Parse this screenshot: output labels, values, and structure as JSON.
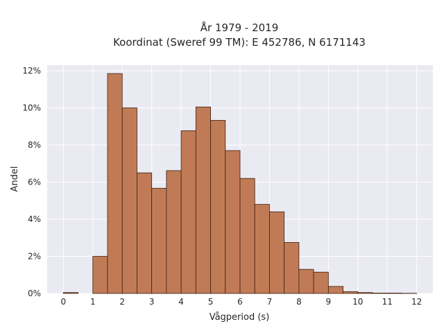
{
  "chart_data": {
    "type": "bar",
    "title_lines": [
      "År 1979 - 2019",
      "Koordinat (Sweref 99 TM): E 452786, N 6171143"
    ],
    "xlabel": "Vågperiod (s)",
    "ylabel": "Andel",
    "bin_width": 0.5,
    "xlim": [
      -0.55,
      12.55
    ],
    "ylim": [
      0,
      12.3
    ],
    "x_ticks": [
      0,
      1,
      2,
      3,
      4,
      5,
      6,
      7,
      8,
      9,
      10,
      11,
      12
    ],
    "x_tick_labels": [
      "0",
      "1",
      "2",
      "3",
      "4",
      "5",
      "6",
      "7",
      "8",
      "9",
      "10",
      "11",
      "12"
    ],
    "y_ticks": [
      0,
      2,
      4,
      6,
      8,
      10,
      12
    ],
    "y_tick_labels": [
      "0%",
      "2%",
      "4%",
      "6%",
      "8%",
      "10%",
      "12%"
    ],
    "grid": true,
    "colors": {
      "bar_fill": "#c07b56",
      "bar_edge": "#3b1f10",
      "plot_bg": "#eaeaf2",
      "grid": "#ffffff"
    },
    "bars": [
      {
        "x_start": 0.0,
        "value": 0.05
      },
      {
        "x_start": 1.0,
        "value": 2.0
      },
      {
        "x_start": 1.5,
        "value": 11.85
      },
      {
        "x_start": 2.0,
        "value": 10.0
      },
      {
        "x_start": 2.5,
        "value": 6.5
      },
      {
        "x_start": 3.0,
        "value": 5.67
      },
      {
        "x_start": 3.5,
        "value": 6.62
      },
      {
        "x_start": 4.0,
        "value": 8.77
      },
      {
        "x_start": 4.5,
        "value": 10.05
      },
      {
        "x_start": 5.0,
        "value": 9.33
      },
      {
        "x_start": 5.5,
        "value": 7.7
      },
      {
        "x_start": 6.0,
        "value": 6.2
      },
      {
        "x_start": 6.5,
        "value": 4.8
      },
      {
        "x_start": 7.0,
        "value": 4.4
      },
      {
        "x_start": 7.5,
        "value": 2.75
      },
      {
        "x_start": 8.0,
        "value": 1.3
      },
      {
        "x_start": 8.5,
        "value": 1.15
      },
      {
        "x_start": 9.0,
        "value": 0.38
      },
      {
        "x_start": 9.5,
        "value": 0.1
      },
      {
        "x_start": 10.0,
        "value": 0.05
      },
      {
        "x_start": 10.5,
        "value": 0.02
      },
      {
        "x_start": 11.0,
        "value": 0.02
      },
      {
        "x_start": 11.5,
        "value": 0.01
      }
    ]
  }
}
